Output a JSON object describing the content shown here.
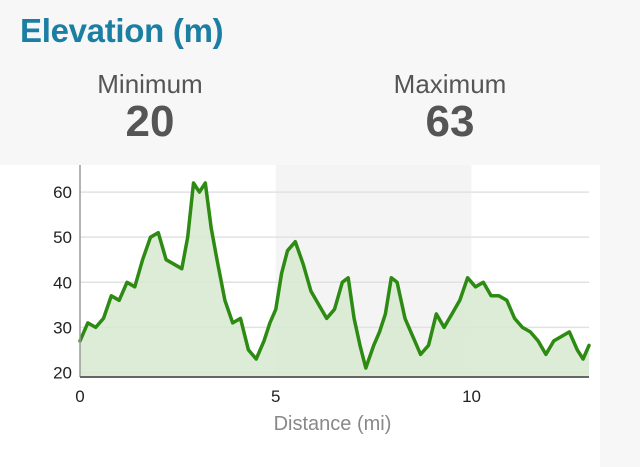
{
  "header": {
    "title": "Elevation (m)"
  },
  "stats": {
    "min_label": "Minimum",
    "min_value": "20",
    "max_label": "Maximum",
    "max_value": "63"
  },
  "colors": {
    "line": "#2d8a12",
    "fill": "#d6e9cf",
    "title": "#1b7ea3",
    "band": "#f4f4f4"
  },
  "chart_data": {
    "type": "area",
    "xlabel": "Distance (mi)",
    "ylabel": "",
    "xlim": [
      0,
      13
    ],
    "ylim": [
      19,
      66
    ],
    "x_ticks": [
      0,
      5,
      10
    ],
    "y_ticks": [
      20,
      30,
      40,
      50,
      60
    ],
    "grid": true,
    "shaded_bands_x": [
      [
        5,
        10
      ]
    ],
    "series": [
      {
        "x": [
          0,
          0.2,
          0.4,
          0.6,
          0.8,
          1.0,
          1.2,
          1.4,
          1.6,
          1.8,
          2.0,
          2.2,
          2.4,
          2.6,
          2.75,
          2.9,
          3.05,
          3.2,
          3.35,
          3.5,
          3.7,
          3.9,
          4.1,
          4.3,
          4.5,
          4.7,
          4.85,
          5.0,
          5.15,
          5.3,
          5.5,
          5.7,
          5.9,
          6.1,
          6.3,
          6.5,
          6.7,
          6.85,
          7.0,
          7.15,
          7.3,
          7.5,
          7.65,
          7.8,
          7.95,
          8.1,
          8.3,
          8.5,
          8.7,
          8.9,
          9.1,
          9.3,
          9.5,
          9.7,
          9.9,
          10.1,
          10.3,
          10.5,
          10.7,
          10.9,
          11.1,
          11.3,
          11.5,
          11.7,
          11.9,
          12.1,
          12.3,
          12.5,
          12.7,
          12.85,
          13.0
        ],
        "y": [
          27,
          31,
          30,
          32,
          37,
          36,
          40,
          39,
          45,
          50,
          51,
          45,
          44,
          43,
          50,
          62,
          60,
          62,
          52,
          45,
          36,
          31,
          32,
          25,
          23,
          27,
          31,
          34,
          42,
          47,
          49,
          44,
          38,
          35,
          32,
          34,
          40,
          41,
          32,
          26,
          21,
          26,
          29,
          33,
          41,
          40,
          32,
          28,
          24,
          26,
          33,
          30,
          33,
          36,
          41,
          39,
          40,
          37,
          37,
          36,
          32,
          30,
          29,
          27,
          24,
          27,
          28,
          29,
          25,
          23,
          26
        ]
      }
    ]
  }
}
